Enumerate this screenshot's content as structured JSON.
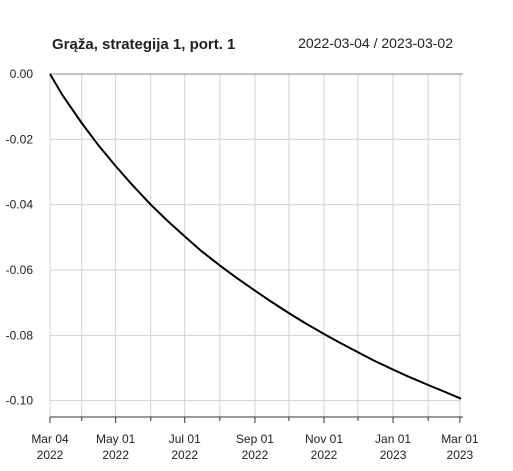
{
  "chart_data": {
    "type": "line",
    "title": "Grąža, strategija 1, port. 1",
    "date_range": "2022-03-04 / 2023-03-02",
    "xlabel": "",
    "ylabel": "",
    "x_range": [
      "2022-03-04",
      "2023-03-02"
    ],
    "ylim": [
      -0.105,
      0.0
    ],
    "y_ticks": [
      0.0,
      -0.02,
      -0.04,
      -0.06,
      -0.08,
      -0.1
    ],
    "y_tick_labels": [
      "0.00",
      "-0.02",
      "-0.04",
      "-0.06",
      "-0.08",
      "-0.10"
    ],
    "x_ticks": [
      {
        "date": "2022-03-04",
        "label1": "Mar 04",
        "label2": "2022"
      },
      {
        "date": "2022-05-01",
        "label1": "May 01",
        "label2": "2022"
      },
      {
        "date": "2022-07-01",
        "label1": "Jul 01",
        "label2": "2022"
      },
      {
        "date": "2022-09-01",
        "label1": "Sep 01",
        "label2": "2022"
      },
      {
        "date": "2022-11-01",
        "label1": "Nov 01",
        "label2": "2022"
      },
      {
        "date": "2023-01-01",
        "label1": "Jan 01",
        "label2": "2023"
      },
      {
        "date": "2023-03-01",
        "label1": "Mar 01",
        "label2": "2023"
      }
    ],
    "x_minor_ticks": [
      "2022-04-01",
      "2022-06-01",
      "2022-08-01",
      "2022-10-01",
      "2022-12-01",
      "2023-02-01"
    ],
    "grid": true,
    "series": [
      {
        "color": "#000000",
        "points": [
          {
            "x": "2022-03-04",
            "y": 0.0
          },
          {
            "x": "2022-03-15",
            "y": -0.0065
          },
          {
            "x": "2022-04-01",
            "y": -0.015
          },
          {
            "x": "2022-04-15",
            "y": -0.0215
          },
          {
            "x": "2022-05-01",
            "y": -0.0282
          },
          {
            "x": "2022-05-15",
            "y": -0.0337
          },
          {
            "x": "2022-06-01",
            "y": -0.04
          },
          {
            "x": "2022-06-15",
            "y": -0.0447
          },
          {
            "x": "2022-07-01",
            "y": -0.0497
          },
          {
            "x": "2022-07-15",
            "y": -0.054
          },
          {
            "x": "2022-08-01",
            "y": -0.0586
          },
          {
            "x": "2022-08-15",
            "y": -0.0622
          },
          {
            "x": "2022-09-01",
            "y": -0.0663
          },
          {
            "x": "2022-09-15",
            "y": -0.0696
          },
          {
            "x": "2022-10-01",
            "y": -0.0732
          },
          {
            "x": "2022-10-15",
            "y": -0.0762
          },
          {
            "x": "2022-11-01",
            "y": -0.0796
          },
          {
            "x": "2022-11-15",
            "y": -0.0823
          },
          {
            "x": "2022-12-01",
            "y": -0.0852
          },
          {
            "x": "2022-12-15",
            "y": -0.0877
          },
          {
            "x": "2023-01-01",
            "y": -0.0905
          },
          {
            "x": "2023-01-15",
            "y": -0.0927
          },
          {
            "x": "2023-02-01",
            "y": -0.0952
          },
          {
            "x": "2023-02-15",
            "y": -0.0972
          },
          {
            "x": "2023-03-02",
            "y": -0.0994
          }
        ]
      }
    ]
  }
}
